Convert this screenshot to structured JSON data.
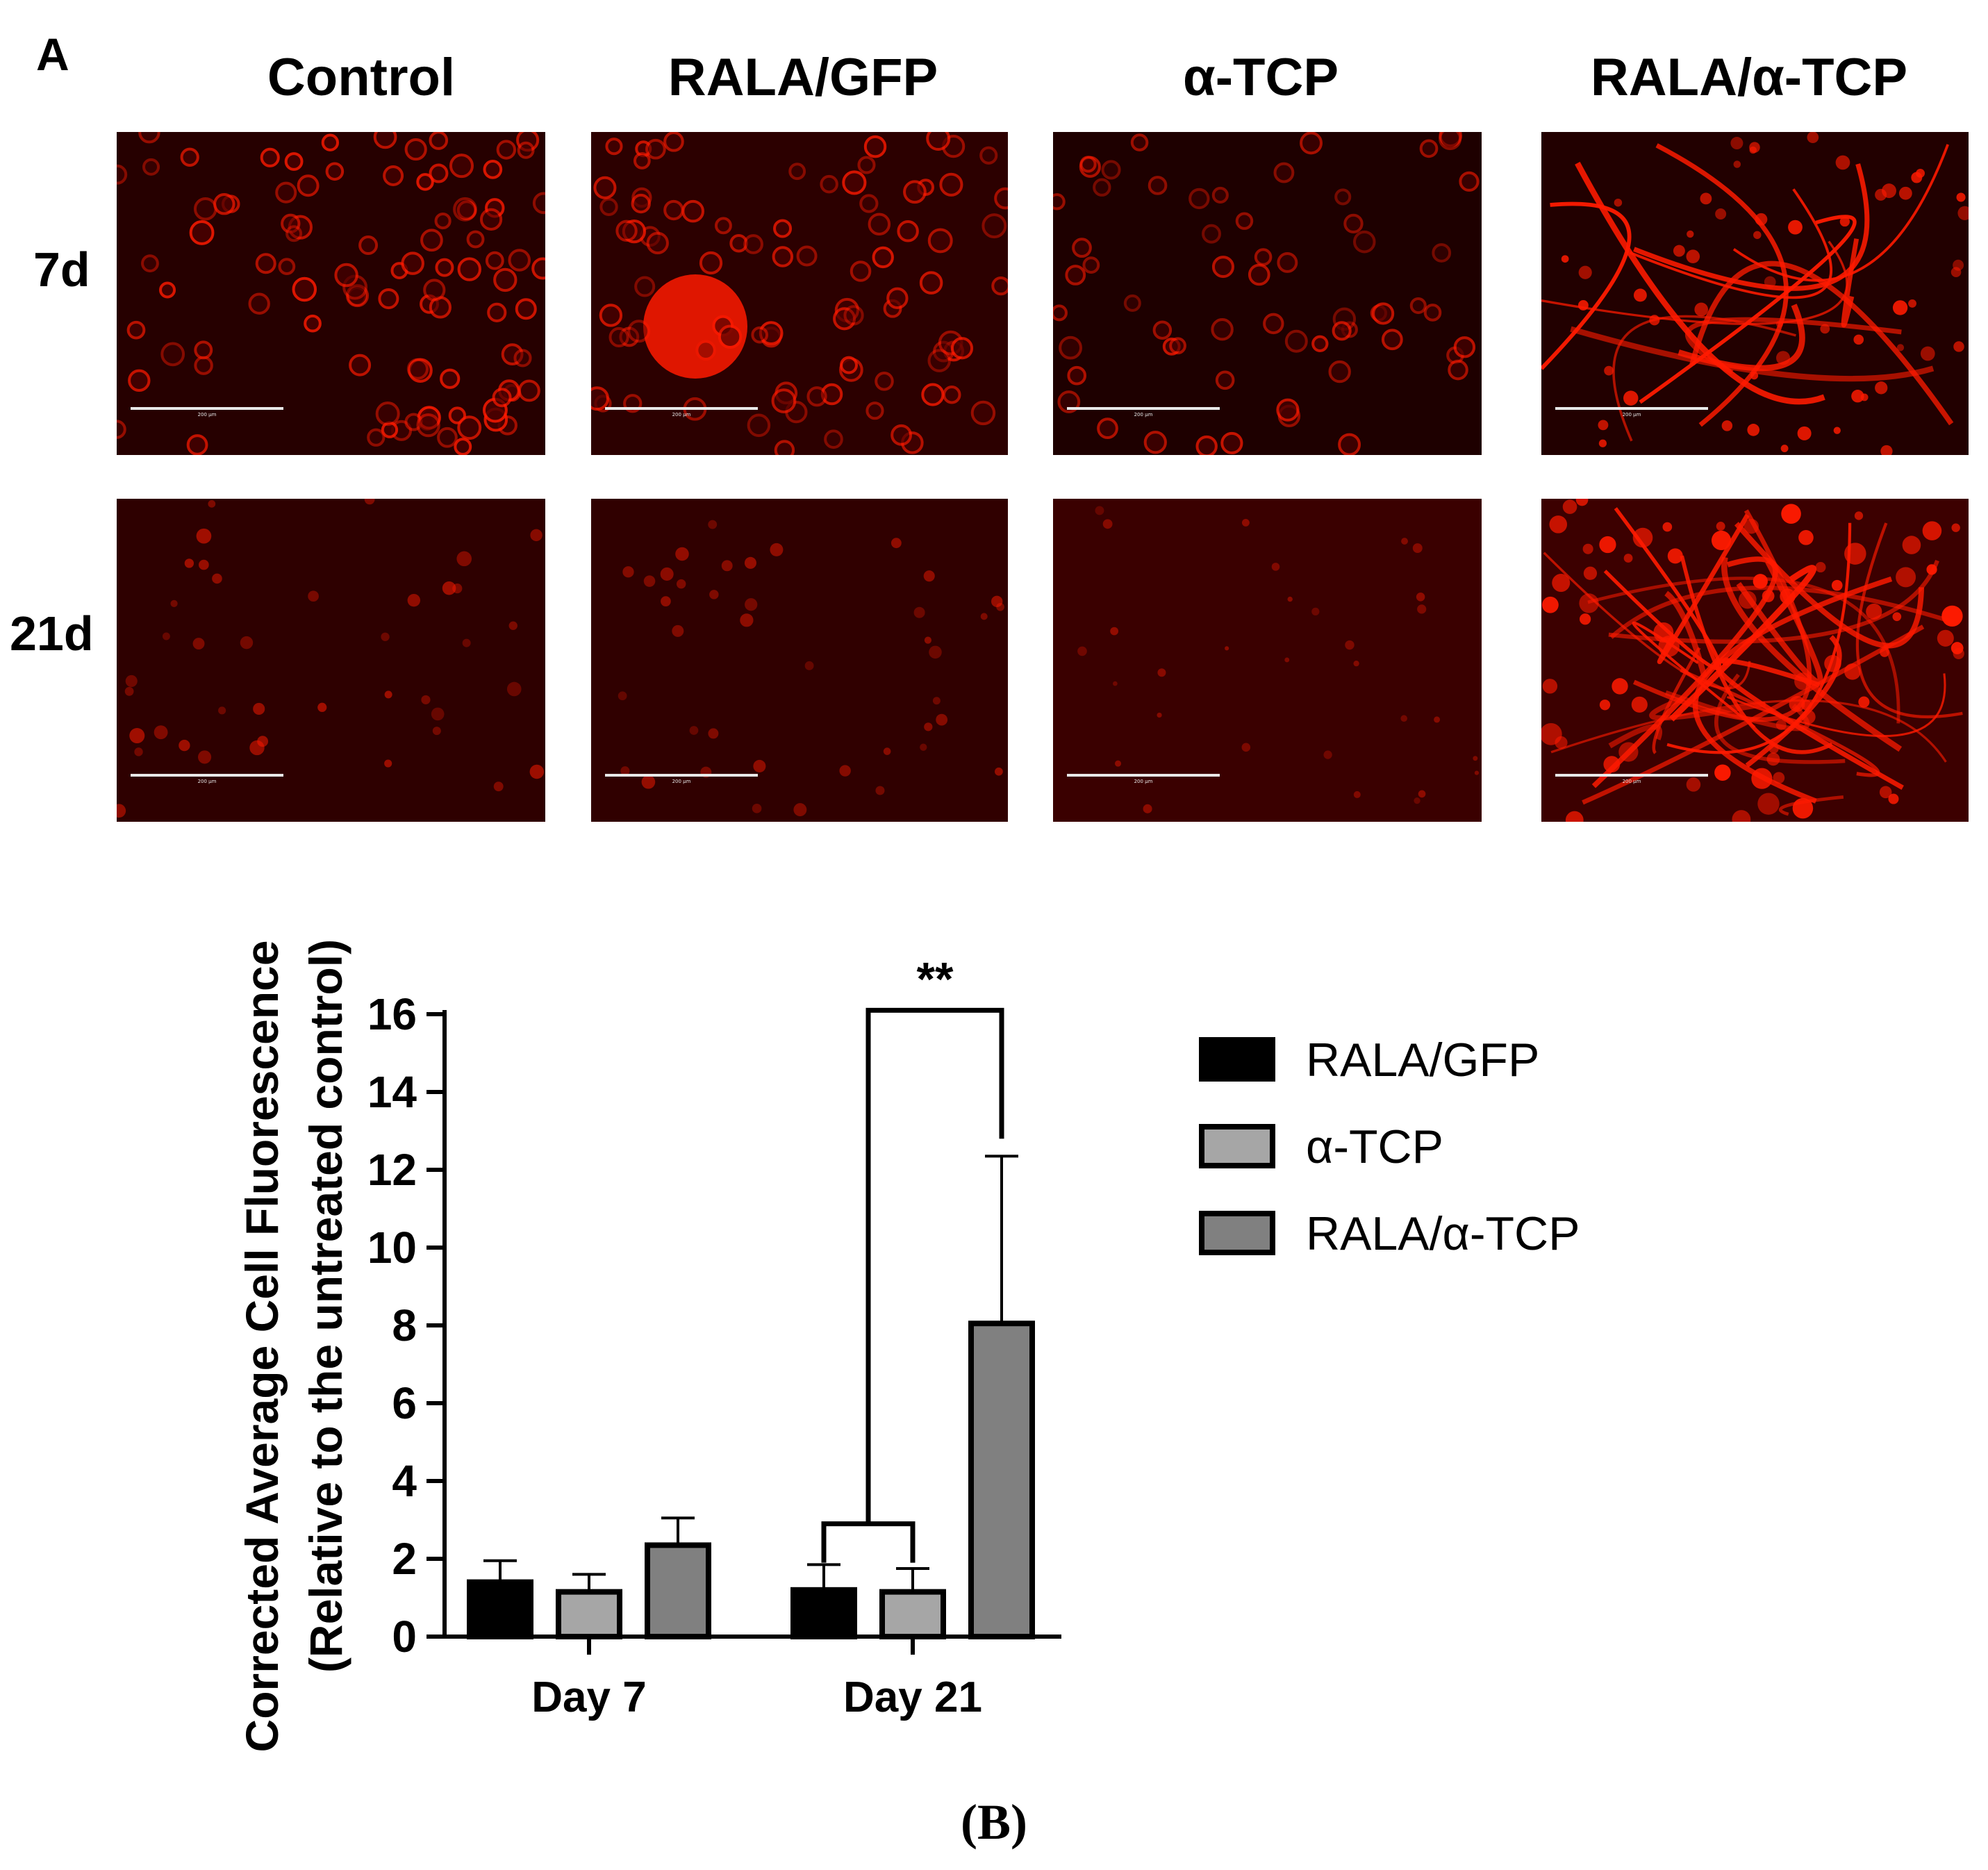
{
  "figure": {
    "panel_a_letter": "A",
    "panel_b_caption": "(B)"
  },
  "micrographs": {
    "columns": [
      "Control",
      "RALA/GFP",
      "α-TCP",
      "RALA/α-TCP"
    ],
    "rows": [
      "7d",
      "21d"
    ],
    "scale_bar_label": "200 µm",
    "tint": "#ff1a00"
  },
  "chart_data": {
    "type": "bar",
    "categories": [
      "Day 7",
      "Day 21"
    ],
    "series": [
      {
        "name": "RALA/GFP",
        "values": [
          1.4,
          1.2
        ],
        "errors": [
          0.55,
          0.65
        ],
        "color": "#000000"
      },
      {
        "name": "α-TCP",
        "values": [
          1.15,
          1.15
        ],
        "errors": [
          0.45,
          0.6
        ],
        "color": "#a6a6a6"
      },
      {
        "name": "RALA/α-TCP",
        "values": [
          2.35,
          8.05
        ],
        "errors": [
          0.7,
          4.3
        ],
        "color": "#808080"
      }
    ],
    "ylabel": "Corrected Average Cell Fluorescence",
    "ylabel2": "(Relative to the untreated control)",
    "ylim": [
      0,
      16
    ],
    "yticks": [
      0,
      2,
      4,
      6,
      8,
      10,
      12,
      14,
      16
    ],
    "grid": false,
    "legend_position": "right",
    "significance": {
      "label": "**",
      "category": "Day 21",
      "from": [
        "RALA/GFP",
        "α-TCP"
      ],
      "to": "RALA/α-TCP"
    }
  }
}
